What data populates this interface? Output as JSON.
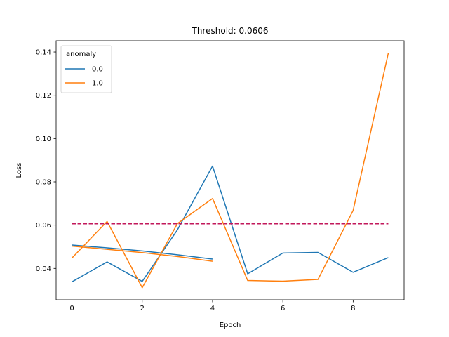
{
  "chart_data": {
    "type": "line",
    "title": "Threshold: 0.0606",
    "xlabel": "Epoch",
    "ylabel": "Loss",
    "xlim": [
      -0.45,
      9.45
    ],
    "ylim": [
      0.0255,
      0.1452
    ],
    "x_ticks": [
      0,
      2,
      4,
      6,
      8
    ],
    "y_ticks": [
      0.04,
      0.06,
      0.08,
      0.1,
      0.12,
      0.14
    ],
    "y_tick_labels": [
      "0.04",
      "0.06",
      "0.08",
      "0.10",
      "0.12",
      "0.14"
    ],
    "grid": false,
    "legend": {
      "title": "anomaly",
      "placement": "top-left"
    },
    "threshold": {
      "value": 0.0606,
      "x_range": [
        0,
        9
      ],
      "color": "#c2185b",
      "style": "dashed"
    },
    "series": [
      {
        "name": "0.0",
        "color": "#1f77b4",
        "lines": [
          {
            "x": [
              0,
              1,
              2,
              3,
              4,
              5,
              6,
              7,
              8,
              9
            ],
            "y": [
              0.0338,
              0.043,
              0.034,
              0.0578,
              0.0873,
              0.0375,
              0.0471,
              0.0474,
              0.0382,
              0.045
            ]
          },
          {
            "x": [
              0,
              1,
              2,
              3,
              4
            ],
            "y": [
              0.0508,
              0.0495,
              0.0481,
              0.0463,
              0.0443
            ]
          }
        ]
      },
      {
        "name": "1.0",
        "color": "#ff7f0e",
        "lines": [
          {
            "x": [
              0,
              1,
              2,
              3,
              4,
              5,
              6,
              7,
              8,
              9
            ],
            "y": [
              0.0448,
              0.0617,
              0.0311,
              0.0607,
              0.0723,
              0.0344,
              0.0341,
              0.0349,
              0.0668,
              0.1394
            ]
          },
          {
            "x": [
              0,
              1,
              2,
              3,
              4
            ],
            "y": [
              0.0503,
              0.0488,
              0.0473,
              0.0455,
              0.0433
            ]
          }
        ]
      }
    ]
  }
}
